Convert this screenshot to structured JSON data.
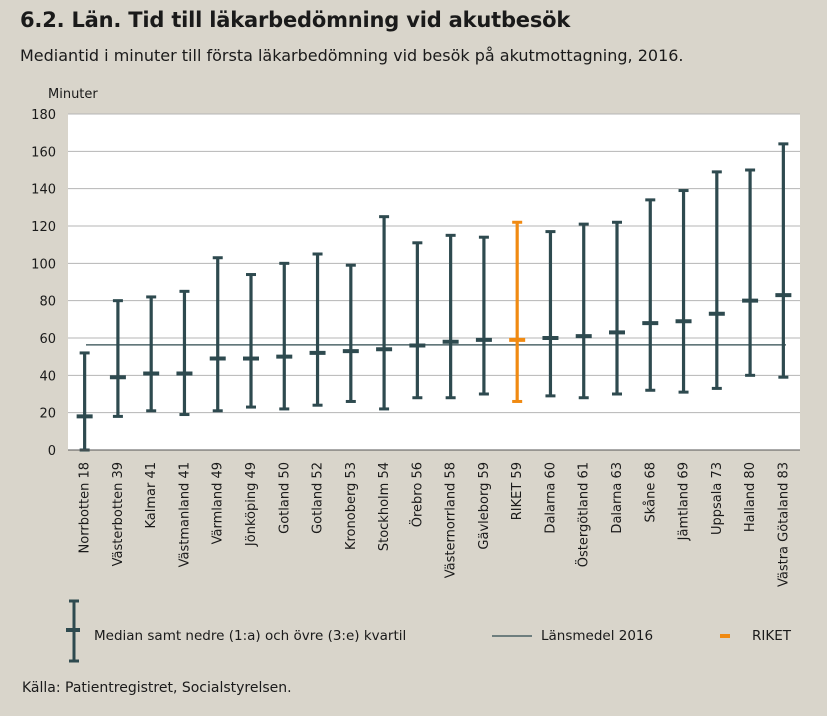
{
  "header": {
    "title": "6.2. Län. Tid till läkarbedömning vid akutbesök",
    "subtitle": "Mediantid i minuter till första läkarbedömning vid besök på akutmottagning, 2016."
  },
  "source": "Källa: Patientregistret, Socialstyrelsen.",
  "colors": {
    "background": "#d9d5cb",
    "plot_background": "#ffffff",
    "series": "#2e4a4f",
    "riket": "#f08a12",
    "grid": "#b5b5b5"
  },
  "chart_data": {
    "type": "errorbar",
    "title": "6.2. Län. Tid till läkarbedömning vid akutbesök",
    "subtitle": "Mediantid i minuter till första läkarbedömning vid besök på akutmottagning, 2016.",
    "ylabel": "Minuter",
    "xlabel": "",
    "ylim": [
      0,
      180
    ],
    "yticks": [
      0,
      20,
      40,
      60,
      80,
      100,
      120,
      140,
      160,
      180
    ],
    "grid": "horizontal",
    "categories": [
      "Norrbotten 18",
      "Västerbotten 39",
      "Kalmar 41",
      "Västmanland 41",
      "Värmland 49",
      "Jönköping 49",
      "Gotland 50",
      "Gotland 52",
      "Kronoberg 53",
      "Stockholm 54",
      "Örebro 56",
      "Västernorrland 58",
      "Gävleborg 59",
      "RIKET 59",
      "Dalarna 60",
      "Östergötland 61",
      "Dalarna 63",
      "Skåne 68",
      "Jämtland 69",
      "Uppsala 73",
      "Halland 80",
      "Västra Götaland 83"
    ],
    "series": [
      {
        "name": "Median samt nedre (1:a) och övre (3:e) kvartil",
        "median": [
          18,
          39,
          41,
          41,
          49,
          49,
          50,
          52,
          53,
          54,
          56,
          58,
          59,
          59,
          60,
          61,
          63,
          68,
          69,
          73,
          80,
          83
        ],
        "lower": [
          0,
          18,
          21,
          19,
          21,
          23,
          22,
          24,
          26,
          22,
          28,
          28,
          30,
          26,
          29,
          28,
          30,
          32,
          31,
          33,
          40,
          39
        ],
        "upper": [
          52,
          80,
          82,
          85,
          103,
          94,
          100,
          105,
          99,
          125,
          111,
          115,
          114,
          122,
          117,
          121,
          122,
          134,
          139,
          149,
          150,
          164
        ]
      }
    ],
    "highlight_category": "RIKET 59",
    "reference_line": {
      "name": "Länsmedel 2016",
      "value": 56.3
    },
    "legend": {
      "placement": "bottom",
      "items": [
        {
          "label": "Median samt nedre (1:a) och övre (3:e) kvartil"
        },
        {
          "label": "Länsmedel 2016"
        },
        {
          "label": "RIKET"
        }
      ]
    }
  }
}
